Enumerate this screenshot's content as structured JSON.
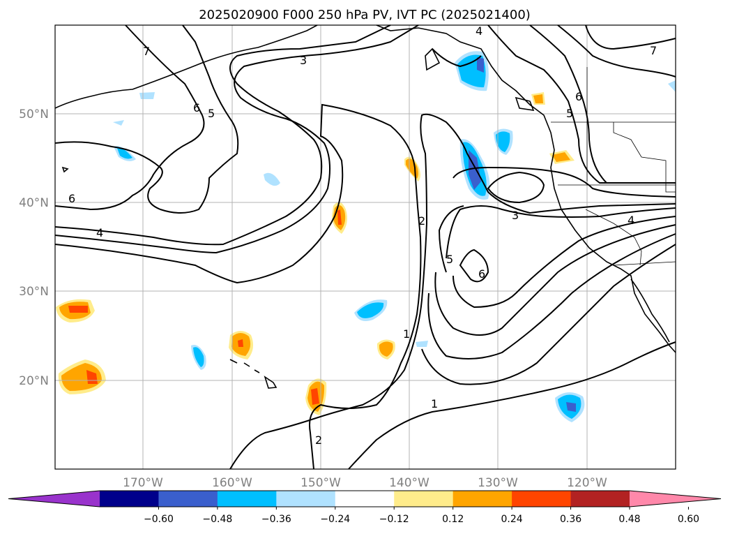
{
  "title": "2025020900 F000 250 hPa PV, IVT PC (2025021400)",
  "lat_labels": [
    "50°N",
    "40°N",
    "30°N",
    "20°N"
  ],
  "lon_labels": [
    "170°W",
    "160°W",
    "150°W",
    "140°W",
    "130°W",
    "120°W"
  ],
  "colorbar": {
    "tick_labels": [
      "−0.60",
      "−0.48",
      "−0.36",
      "−0.24",
      "−0.12",
      "0.12",
      "0.24",
      "0.36",
      "0.48",
      "0.60"
    ],
    "colors": [
      "#9933cc",
      "#00008b",
      "#3a5fcd",
      "#00bfff",
      "#b0e2ff",
      "#ffffff",
      "#ffec8b",
      "#ffa500",
      "#ff4500",
      "#b22222",
      "#ff88aa"
    ],
    "extend": "both"
  },
  "contour_labels": [
    "7",
    "6",
    "5",
    "3",
    "4",
    "6",
    "4",
    "2",
    "1",
    "1",
    "2",
    "5",
    "6",
    "3",
    "4",
    "6",
    "5",
    "7"
  ],
  "colors": {
    "grid": "#b3b3b3",
    "contour": "#000000",
    "coast": "#000000"
  }
}
